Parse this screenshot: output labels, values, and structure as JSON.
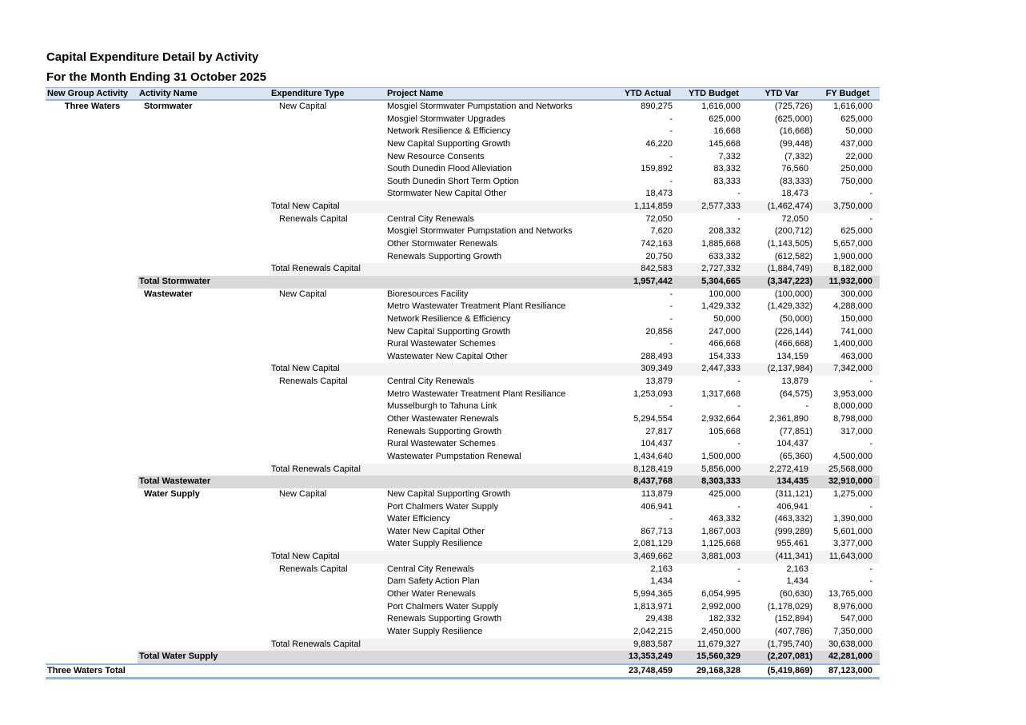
{
  "report": {
    "title": "Capital Expenditure Detail by Activity",
    "subtitle": "For the Month Ending 31 October 2025",
    "columns": [
      "New Group Activity",
      "Activity Name",
      "Expenditure Type",
      "Project Name",
      "YTD Actual",
      "YTD Budget",
      "YTD Var",
      "FY Budget"
    ],
    "colors": {
      "header_fill": "#dbe5f1",
      "header_border": "#95b3d7",
      "subtotal_fill": "#f2f2f2",
      "activity_total_fill": "#d9d9d9",
      "grand_total_border": "#95b3d7"
    },
    "rows": [
      {
        "type": "project",
        "group": "Three Waters",
        "activity": "Stormwater",
        "exp": "New Capital",
        "project": "Mosgiel Stormwater Pumpstation and Networks",
        "v": [
          "890,275",
          "1,616,000",
          "(725,726)",
          "1,616,000"
        ]
      },
      {
        "type": "project",
        "project": "Mosgiel Stormwater Upgrades",
        "v": [
          "-",
          "625,000",
          "(625,000)",
          "625,000"
        ]
      },
      {
        "type": "project",
        "project": "Network Resilience & Efficiency",
        "v": [
          "-",
          "16,668",
          "(16,668)",
          "50,000"
        ]
      },
      {
        "type": "project",
        "project": "New Capital Supporting Growth",
        "v": [
          "46,220",
          "145,668",
          "(99,448)",
          "437,000"
        ]
      },
      {
        "type": "project",
        "project": "New Resource Consents",
        "v": [
          "-",
          "7,332",
          "(7,332)",
          "22,000"
        ]
      },
      {
        "type": "project",
        "project": "South Dunedin Flood Alleviation",
        "v": [
          "159,892",
          "83,332",
          "76,560",
          "250,000"
        ]
      },
      {
        "type": "project",
        "project": "South Dunedin Short Term Option",
        "v": [
          "-",
          "83,333",
          "(83,333)",
          "750,000"
        ]
      },
      {
        "type": "project",
        "project": "Stormwater New Capital Other",
        "v": [
          "18,473",
          "-",
          "18,473",
          "-"
        ]
      },
      {
        "type": "subtotal",
        "exp": "Total New Capital",
        "v": [
          "1,114,859",
          "2,577,333",
          "(1,462,474)",
          "3,750,000"
        ]
      },
      {
        "type": "project",
        "exp": "Renewals Capital",
        "project": "Central City Renewals",
        "v": [
          "72,050",
          "-",
          "72,050",
          "-"
        ]
      },
      {
        "type": "project",
        "project": "Mosgiel Stormwater Pumpstation and Networks",
        "v": [
          "7,620",
          "208,332",
          "(200,712)",
          "625,000"
        ]
      },
      {
        "type": "project",
        "project": "Other Stormwater Renewals",
        "v": [
          "742,163",
          "1,885,668",
          "(1,143,505)",
          "5,657,000"
        ]
      },
      {
        "type": "project",
        "project": "Renewals Supporting Growth",
        "v": [
          "20,750",
          "633,332",
          "(612,582)",
          "1,900,000"
        ]
      },
      {
        "type": "subtotal",
        "exp": "Total Renewals Capital",
        "v": [
          "842,583",
          "2,727,332",
          "(1,884,749)",
          "8,182,000"
        ]
      },
      {
        "type": "activity_total",
        "activity": "Total Stormwater",
        "v": [
          "1,957,442",
          "5,304,665",
          "(3,347,223)",
          "11,932,000"
        ]
      },
      {
        "type": "project",
        "activity": "Wastewater",
        "exp": "New Capital",
        "project": "Bioresources Facility",
        "v": [
          "-",
          "100,000",
          "(100,000)",
          "300,000"
        ]
      },
      {
        "type": "project",
        "project": "Metro Wastewater Treatment Plant Resiliance",
        "v": [
          "-",
          "1,429,332",
          "(1,429,332)",
          "4,288,000"
        ]
      },
      {
        "type": "project",
        "project": "Network Resilience & Efficiency",
        "v": [
          "-",
          "50,000",
          "(50,000)",
          "150,000"
        ]
      },
      {
        "type": "project",
        "project": "New Capital Supporting Growth",
        "v": [
          "20,856",
          "247,000",
          "(226,144)",
          "741,000"
        ]
      },
      {
        "type": "project",
        "project": "Rural Wastewater Schemes",
        "v": [
          "-",
          "466,668",
          "(466,668)",
          "1,400,000"
        ]
      },
      {
        "type": "project",
        "project": "Wastewater New Capital Other",
        "v": [
          "288,493",
          "154,333",
          "134,159",
          "463,000"
        ]
      },
      {
        "type": "subtotal",
        "exp": "Total New Capital",
        "v": [
          "309,349",
          "2,447,333",
          "(2,137,984)",
          "7,342,000"
        ]
      },
      {
        "type": "project",
        "exp": "Renewals Capital",
        "project": "Central City Renewals",
        "v": [
          "13,879",
          "-",
          "13,879",
          "-"
        ]
      },
      {
        "type": "project",
        "project": "Metro Wastewater Treatment Plant Resiliance",
        "v": [
          "1,253,093",
          "1,317,668",
          "(64,575)",
          "3,953,000"
        ]
      },
      {
        "type": "project",
        "project": "Musselburgh to Tahuna Link",
        "v": [
          "-",
          "-",
          "-",
          "8,000,000"
        ]
      },
      {
        "type": "project",
        "project": "Other Wastewater Renewals",
        "v": [
          "5,294,554",
          "2,932,664",
          "2,361,890",
          "8,798,000"
        ]
      },
      {
        "type": "project",
        "project": "Renewals Supporting Growth",
        "v": [
          "27,817",
          "105,668",
          "(77,851)",
          "317,000"
        ]
      },
      {
        "type": "project",
        "project": "Rural Wastewater Schemes",
        "v": [
          "104,437",
          "-",
          "104,437",
          "-"
        ]
      },
      {
        "type": "project",
        "project": "Wastewater Pumpstation Renewal",
        "v": [
          "1,434,640",
          "1,500,000",
          "(65,360)",
          "4,500,000"
        ]
      },
      {
        "type": "subtotal",
        "exp": "Total Renewals Capital",
        "v": [
          "8,128,419",
          "5,856,000",
          "2,272,419",
          "25,568,000"
        ]
      },
      {
        "type": "activity_total",
        "activity": "Total Wastewater",
        "v": [
          "8,437,768",
          "8,303,333",
          "134,435",
          "32,910,000"
        ]
      },
      {
        "type": "project",
        "activity": "Water Supply",
        "exp": "New Capital",
        "project": "New Capital Supporting Growth",
        "v": [
          "113,879",
          "425,000",
          "(311,121)",
          "1,275,000"
        ]
      },
      {
        "type": "project",
        "project": "Port Chalmers Water Supply",
        "v": [
          "406,941",
          "-",
          "406,941",
          "-"
        ]
      },
      {
        "type": "project",
        "project": "Water Efficiency",
        "v": [
          "-",
          "463,332",
          "(463,332)",
          "1,390,000"
        ]
      },
      {
        "type": "project",
        "project": "Water New Capital Other",
        "v": [
          "867,713",
          "1,867,003",
          "(999,289)",
          "5,601,000"
        ]
      },
      {
        "type": "project",
        "project": "Water Supply Resilience",
        "v": [
          "2,081,129",
          "1,125,668",
          "955,461",
          "3,377,000"
        ]
      },
      {
        "type": "subtotal",
        "exp": "Total New Capital",
        "v": [
          "3,469,662",
          "3,881,003",
          "(411,341)",
          "11,643,000"
        ]
      },
      {
        "type": "project",
        "exp": "Renewals Capital",
        "project": "Central City Renewals",
        "v": [
          "2,163",
          "-",
          "2,163",
          "-"
        ]
      },
      {
        "type": "project",
        "project": "Dam Safety Action Plan",
        "v": [
          "1,434",
          "-",
          "1,434",
          "-"
        ]
      },
      {
        "type": "project",
        "project": "Other Water Renewals",
        "v": [
          "5,994,365",
          "6,054,995",
          "(60,630)",
          "13,765,000"
        ]
      },
      {
        "type": "project",
        "project": "Port Chalmers Water Supply",
        "v": [
          "1,813,971",
          "2,992,000",
          "(1,178,029)",
          "8,976,000"
        ]
      },
      {
        "type": "project",
        "project": "Renewals Supporting Growth",
        "v": [
          "29,438",
          "182,332",
          "(152,894)",
          "547,000"
        ]
      },
      {
        "type": "project",
        "project": "Water Supply Resilience",
        "v": [
          "2,042,215",
          "2,450,000",
          "(407,786)",
          "7,350,000"
        ]
      },
      {
        "type": "subtotal",
        "exp": "Total Renewals Capital",
        "v": [
          "9,883,587",
          "11,679,327",
          "(1,795,740)",
          "30,638,000"
        ]
      },
      {
        "type": "activity_total",
        "activity": "Total Water Supply",
        "v": [
          "13,353,249",
          "15,560,329",
          "(2,207,081)",
          "42,281,000"
        ]
      },
      {
        "type": "grand_total",
        "group": "Three Waters Total",
        "v": [
          "23,748,459",
          "29,168,328",
          "(5,419,869)",
          "87,123,000"
        ]
      }
    ]
  }
}
